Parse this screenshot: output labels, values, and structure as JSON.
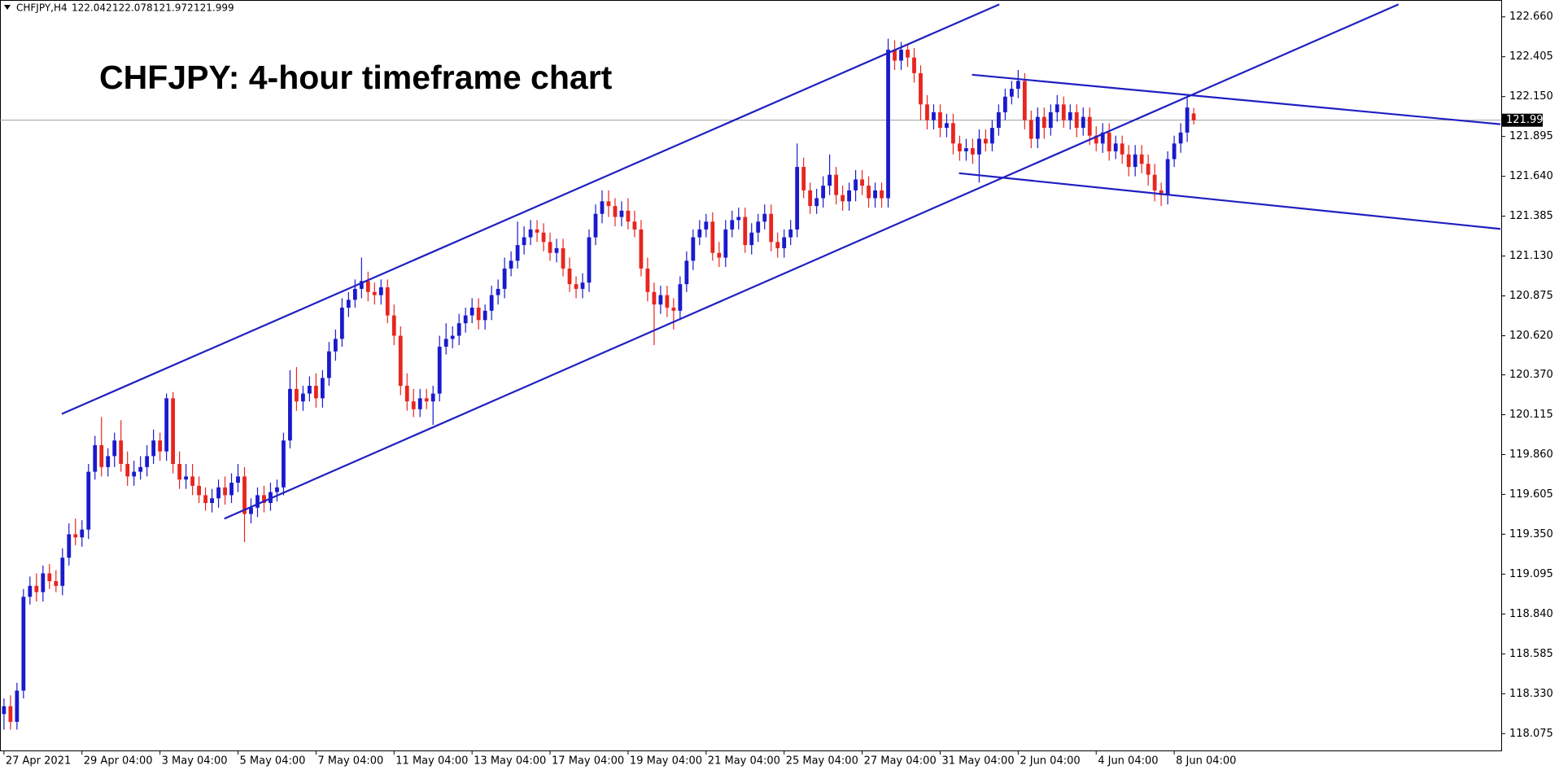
{
  "chart_data": {
    "type": "candlestick",
    "symbol": "CHFJPY,H4",
    "title": "CHFJPY: 4-hour timeframe chart",
    "up_color": "#1a1acc",
    "down_color": "#e8251f",
    "trendline_color": "#1f1fc2",
    "price_line_color": "#a0a0a0",
    "open": [
      118.2,
      118.25,
      118.15,
      118.35,
      118.95,
      119.02,
      118.98,
      119.1,
      119.05,
      119.02,
      119.2,
      119.35,
      119.33,
      119.38,
      119.75,
      119.92,
      119.78,
      119.85,
      119.95,
      119.8,
      119.72,
      119.75,
      119.78,
      119.85,
      119.95,
      119.88,
      120.22,
      119.8,
      119.7,
      119.72,
      119.66,
      119.6,
      119.55,
      119.58,
      119.65,
      119.6,
      119.68,
      119.72,
      119.48,
      119.52,
      119.6,
      119.55,
      119.62,
      119.65,
      119.95,
      120.28,
      120.2,
      120.25,
      120.3,
      120.22,
      120.35,
      120.52,
      120.6,
      120.8,
      120.85,
      120.92,
      120.97,
      120.9,
      120.88,
      120.93,
      120.75,
      120.62,
      120.3,
      120.2,
      120.15,
      120.22,
      120.2,
      120.25,
      120.55,
      120.6,
      120.62,
      120.7,
      120.75,
      120.8,
      120.72,
      120.78,
      120.88,
      120.92,
      121.05,
      121.1,
      121.2,
      121.25,
      121.3,
      121.28,
      121.22,
      121.15,
      121.18,
      121.05,
      120.95,
      120.92,
      120.96,
      121.25,
      121.4,
      121.48,
      121.45,
      121.38,
      121.42,
      121.35,
      121.3,
      121.05,
      120.9,
      120.82,
      120.88,
      120.8,
      120.78,
      120.95,
      121.1,
      121.25,
      121.3,
      121.35,
      121.15,
      121.12,
      121.3,
      121.36,
      121.38,
      121.2,
      121.28,
      121.35,
      121.4,
      121.22,
      121.18,
      121.25,
      121.3,
      121.7,
      121.55,
      121.45,
      121.5,
      121.58,
      121.65,
      121.52,
      121.48,
      121.55,
      121.62,
      121.58,
      121.5,
      121.55,
      121.5,
      122.45,
      122.38,
      122.45,
      122.4,
      122.3,
      122.1,
      122.0,
      122.05,
      121.95,
      121.98,
      121.85,
      121.8,
      121.82,
      121.78,
      121.88,
      121.85,
      121.95,
      122.05,
      122.15,
      122.2,
      122.25,
      122.0,
      121.88,
      122.02,
      121.95,
      122.05,
      122.1,
      122.0,
      122.05,
      121.95,
      122.02,
      121.9,
      121.85,
      121.92,
      121.8,
      121.85,
      121.78,
      121.7,
      121.78,
      121.72,
      121.65,
      121.55,
      121.52,
      121.75,
      121.85,
      121.92,
      122.042
    ],
    "high": [
      118.3,
      118.32,
      118.4,
      119.0,
      119.08,
      119.1,
      119.15,
      119.16,
      119.12,
      119.26,
      119.42,
      119.45,
      119.44,
      119.8,
      119.98,
      120.1,
      119.9,
      120.0,
      120.08,
      119.88,
      119.82,
      119.85,
      119.92,
      120.02,
      120.0,
      120.25,
      120.26,
      119.88,
      119.8,
      119.8,
      119.72,
      119.65,
      119.64,
      119.7,
      119.72,
      119.74,
      119.8,
      119.78,
      119.58,
      119.65,
      119.66,
      119.68,
      119.7,
      120.0,
      120.4,
      120.42,
      120.3,
      120.36,
      120.38,
      120.4,
      120.58,
      120.66,
      120.86,
      120.9,
      120.98,
      121.12,
      121.03,
      120.96,
      120.98,
      120.98,
      120.82,
      120.68,
      120.38,
      120.28,
      120.28,
      120.28,
      120.3,
      120.62,
      120.7,
      120.68,
      120.76,
      120.8,
      120.86,
      120.86,
      120.82,
      120.94,
      120.98,
      121.12,
      121.16,
      121.35,
      121.32,
      121.36,
      121.36,
      121.34,
      121.28,
      121.24,
      121.24,
      121.12,
      121.0,
      121.02,
      121.3,
      121.46,
      121.55,
      121.55,
      121.5,
      121.48,
      121.5,
      121.42,
      121.36,
      121.12,
      120.96,
      120.94,
      120.94,
      120.86,
      121.0,
      121.16,
      121.3,
      121.36,
      121.4,
      121.41,
      121.22,
      121.36,
      121.42,
      121.44,
      121.44,
      121.34,
      121.4,
      121.46,
      121.46,
      121.28,
      121.3,
      121.36,
      121.85,
      121.76,
      121.6,
      121.56,
      121.64,
      121.78,
      121.7,
      121.58,
      121.6,
      121.68,
      121.68,
      121.64,
      121.6,
      121.6,
      122.52,
      122.51,
      122.5,
      122.48,
      122.46,
      122.35,
      122.16,
      122.1,
      122.1,
      122.04,
      122.04,
      121.9,
      121.88,
      121.88,
      121.94,
      121.94,
      122.0,
      122.1,
      122.2,
      122.25,
      122.32,
      122.3,
      122.06,
      122.08,
      122.08,
      122.1,
      122.16,
      122.15,
      122.1,
      122.1,
      122.08,
      122.08,
      121.96,
      121.98,
      121.98,
      121.9,
      121.9,
      121.84,
      121.84,
      121.84,
      121.78,
      121.72,
      121.6,
      121.8,
      121.9,
      121.98,
      122.14,
      122.078
    ],
    "low": [
      118.1,
      118.1,
      118.1,
      118.3,
      118.9,
      118.92,
      118.92,
      119.0,
      118.98,
      118.96,
      119.15,
      119.28,
      119.27,
      119.32,
      119.7,
      119.72,
      119.72,
      119.78,
      119.75,
      119.66,
      119.66,
      119.7,
      119.72,
      119.8,
      119.82,
      119.82,
      119.74,
      119.64,
      119.64,
      119.6,
      119.55,
      119.5,
      119.49,
      119.52,
      119.54,
      119.55,
      119.62,
      119.3,
      119.42,
      119.46,
      119.49,
      119.5,
      119.56,
      119.6,
      119.9,
      120.14,
      120.14,
      120.2,
      120.16,
      120.16,
      120.3,
      120.46,
      120.55,
      120.74,
      120.8,
      120.86,
      120.84,
      120.82,
      120.82,
      120.7,
      120.56,
      120.24,
      120.14,
      120.1,
      120.1,
      120.15,
      120.05,
      120.2,
      120.5,
      120.54,
      120.56,
      120.64,
      120.7,
      120.66,
      120.66,
      120.72,
      120.82,
      120.86,
      121.0,
      121.05,
      121.14,
      121.2,
      121.22,
      121.16,
      121.1,
      121.09,
      121.0,
      120.9,
      120.86,
      120.86,
      120.9,
      121.2,
      121.34,
      121.38,
      121.32,
      121.32,
      121.3,
      121.25,
      121.0,
      120.84,
      120.56,
      120.76,
      120.74,
      120.66,
      120.72,
      120.9,
      121.04,
      121.2,
      121.25,
      121.1,
      121.06,
      121.06,
      121.25,
      121.3,
      121.15,
      121.14,
      121.22,
      121.3,
      121.16,
      121.12,
      121.12,
      121.2,
      121.25,
      121.5,
      121.4,
      121.4,
      121.44,
      121.52,
      121.46,
      121.42,
      121.42,
      121.48,
      121.52,
      121.44,
      121.44,
      121.44,
      121.44,
      122.32,
      122.32,
      122.34,
      122.24,
      122.0,
      121.94,
      121.94,
      121.89,
      121.89,
      121.78,
      121.74,
      121.74,
      121.72,
      121.6,
      121.8,
      121.8,
      121.9,
      122.0,
      122.1,
      122.14,
      121.94,
      121.82,
      121.82,
      121.88,
      121.9,
      121.99,
      121.95,
      121.94,
      121.89,
      121.9,
      121.84,
      121.8,
      121.79,
      121.74,
      121.75,
      121.72,
      121.64,
      121.64,
      121.66,
      121.58,
      121.48,
      121.45,
      121.46,
      121.7,
      121.79,
      121.86,
      121.972
    ],
    "close": [
      118.25,
      118.15,
      118.35,
      118.95,
      119.02,
      118.98,
      119.1,
      119.05,
      119.02,
      119.2,
      119.35,
      119.33,
      119.38,
      119.75,
      119.92,
      119.78,
      119.85,
      119.95,
      119.8,
      119.72,
      119.75,
      119.78,
      119.85,
      119.95,
      119.88,
      120.22,
      119.8,
      119.7,
      119.72,
      119.66,
      119.6,
      119.55,
      119.58,
      119.65,
      119.6,
      119.68,
      119.72,
      119.48,
      119.52,
      119.6,
      119.55,
      119.62,
      119.65,
      119.95,
      120.28,
      120.2,
      120.25,
      120.3,
      120.22,
      120.35,
      120.52,
      120.6,
      120.8,
      120.85,
      120.92,
      120.97,
      120.9,
      120.88,
      120.93,
      120.75,
      120.62,
      120.3,
      120.2,
      120.15,
      120.22,
      120.2,
      120.25,
      120.55,
      120.6,
      120.62,
      120.7,
      120.75,
      120.8,
      120.72,
      120.78,
      120.88,
      120.92,
      121.05,
      121.1,
      121.2,
      121.25,
      121.3,
      121.28,
      121.22,
      121.15,
      121.18,
      121.05,
      120.95,
      120.92,
      120.96,
      121.25,
      121.4,
      121.48,
      121.45,
      121.38,
      121.42,
      121.35,
      121.3,
      121.05,
      120.9,
      120.82,
      120.88,
      120.8,
      120.78,
      120.95,
      121.1,
      121.25,
      121.3,
      121.35,
      121.15,
      121.12,
      121.3,
      121.36,
      121.38,
      121.2,
      121.28,
      121.35,
      121.4,
      121.22,
      121.18,
      121.25,
      121.3,
      121.7,
      121.55,
      121.45,
      121.5,
      121.58,
      121.65,
      121.52,
      121.48,
      121.55,
      121.62,
      121.58,
      121.5,
      121.55,
      121.5,
      122.45,
      122.38,
      122.45,
      122.4,
      122.3,
      122.1,
      122.0,
      122.05,
      121.95,
      121.98,
      121.85,
      121.8,
      121.82,
      121.78,
      121.88,
      121.85,
      121.95,
      122.05,
      122.15,
      122.2,
      122.25,
      122.0,
      121.88,
      122.02,
      121.95,
      122.05,
      122.1,
      122.0,
      122.05,
      121.95,
      122.02,
      121.9,
      121.85,
      121.92,
      121.8,
      121.85,
      121.78,
      121.7,
      121.78,
      121.72,
      121.65,
      121.55,
      121.52,
      121.75,
      121.85,
      121.92,
      122.08,
      121.999
    ],
    "xlim": [
      -0.61,
      230.3
    ],
    "ylim": [
      117.967,
      122.768
    ],
    "xticks": [
      {
        "value": 0,
        "label": "27 Apr 2021"
      },
      {
        "value": 12,
        "label": "29 Apr 04:00"
      },
      {
        "value": 24,
        "label": "3 May 04:00"
      },
      {
        "value": 36,
        "label": "5 May 04:00"
      },
      {
        "value": 48,
        "label": "7 May 04:00"
      },
      {
        "value": 60,
        "label": "11 May 04:00"
      },
      {
        "value": 72,
        "label": "13 May 04:00"
      },
      {
        "value": 84,
        "label": "17 May 04:00"
      },
      {
        "value": 96,
        "label": "19 May 04:00"
      },
      {
        "value": 108,
        "label": "21 May 04:00"
      },
      {
        "value": 120,
        "label": "25 May 04:00"
      },
      {
        "value": 132,
        "label": "27 May 04:00"
      },
      {
        "value": 144,
        "label": "31 May 04:00"
      },
      {
        "value": 156,
        "label": "2 Jun 04:00"
      },
      {
        "value": 168,
        "label": "4 Jun 04:00"
      },
      {
        "value": 180,
        "label": "8 Jun 04:00"
      }
    ],
    "yticks": [
      {
        "value": 122.66,
        "label": "122.660"
      },
      122.405,
      {
        "value": 122.15,
        "label": "122.150"
      },
      121.895,
      {
        "value": 121.64,
        "label": "121.640"
      },
      121.385,
      {
        "value": 121.13,
        "label": "121.130"
      },
      120.875,
      {
        "value": 120.62,
        "label": "120.620"
      },
      {
        "value": 120.37,
        "label": "120.370"
      },
      120.115,
      {
        "value": 119.86,
        "label": "119.860"
      },
      119.605,
      {
        "value": 119.35,
        "label": "119.350"
      },
      119.095,
      {
        "value": 118.84,
        "label": "118.840"
      },
      118.585,
      {
        "value": 118.33,
        "label": "118.330"
      },
      118.075
    ],
    "trendlines": [
      {
        "points": [
          [
            8.9,
            120.12
          ],
          [
            153.1,
            122.74
          ]
        ]
      },
      {
        "points": [
          [
            33.9,
            119.45
          ],
          [
            214.5,
            122.74
          ]
        ]
      },
      {
        "points": [
          [
            148.9,
            122.29
          ],
          [
            231,
            121.97
          ]
        ]
      },
      {
        "points": [
          [
            146.9,
            121.66
          ],
          [
            231,
            121.3
          ]
        ]
      }
    ]
  }
}
